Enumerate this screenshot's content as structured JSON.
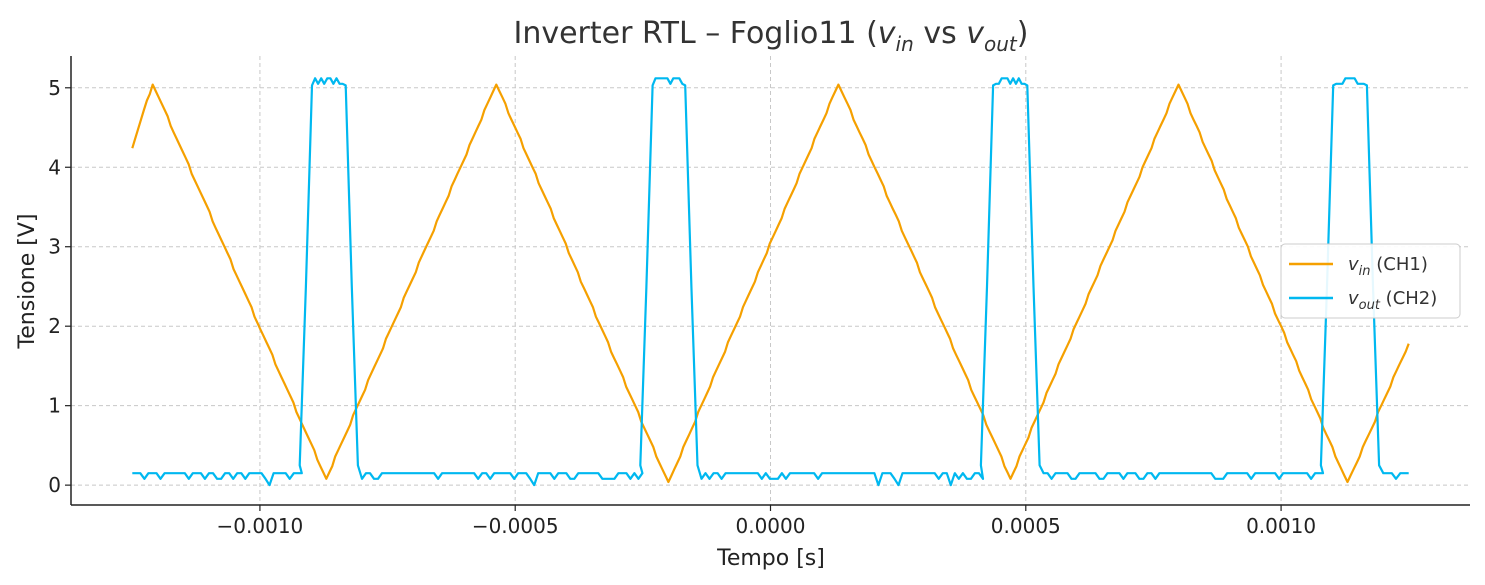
{
  "chart_data": {
    "type": "line",
    "title": {
      "prefix": "Inverter RTL – Foglio11 (",
      "v1": "v",
      "v1_sub": "in",
      "mid": " vs ",
      "v2": "v",
      "v2_sub": "out",
      "suffix": ")"
    },
    "xlabel": "Tempo [s]",
    "ylabel": "Tensione [V]",
    "xlim": [
      -0.00137,
      0.00137
    ],
    "ylim": [
      -0.25,
      5.4
    ],
    "xticks": [
      -0.001,
      -0.0005,
      0.0,
      0.0005,
      0.001
    ],
    "xtick_labels": [
      "−0.0010",
      "−0.0005",
      "0.0000",
      "0.0005",
      "0.0010"
    ],
    "yticks": [
      0,
      1,
      2,
      3,
      4,
      5
    ],
    "ytick_labels": [
      "0",
      "1",
      "2",
      "3",
      "4",
      "5"
    ],
    "grid": true,
    "legend_position": "center-right",
    "series": [
      {
        "name": "v_in (CH1)",
        "legend_var": "v",
        "legend_sub": "in",
        "legend_rest": " (CH1)",
        "color": "#f5a000",
        "x": [
          -0.00125,
          -0.00121,
          -0.00087,
          -0.000537,
          -0.0002,
          0.000133,
          0.00047,
          0.000799,
          0.00113,
          0.00125
        ],
        "y": [
          4.25,
          5.05,
          0.08,
          5.05,
          0.02,
          5.05,
          0.08,
          5.05,
          0.02,
          1.78
        ]
      },
      {
        "name": "v_out (CH2)",
        "legend_var": "v",
        "legend_sub": "out",
        "legend_rest": " (CH2)",
        "color": "#00b8f0",
        "low": 0.15,
        "high": 5.08,
        "x_start": -0.00125,
        "x_end": 0.00125,
        "pulses": [
          [
            -0.00091,
            -0.00082
          ],
          [
            -0.000243,
            -0.000155
          ],
          [
            0.000424,
            0.000515
          ],
          [
            0.00109,
            0.00118
          ]
        ]
      }
    ]
  }
}
